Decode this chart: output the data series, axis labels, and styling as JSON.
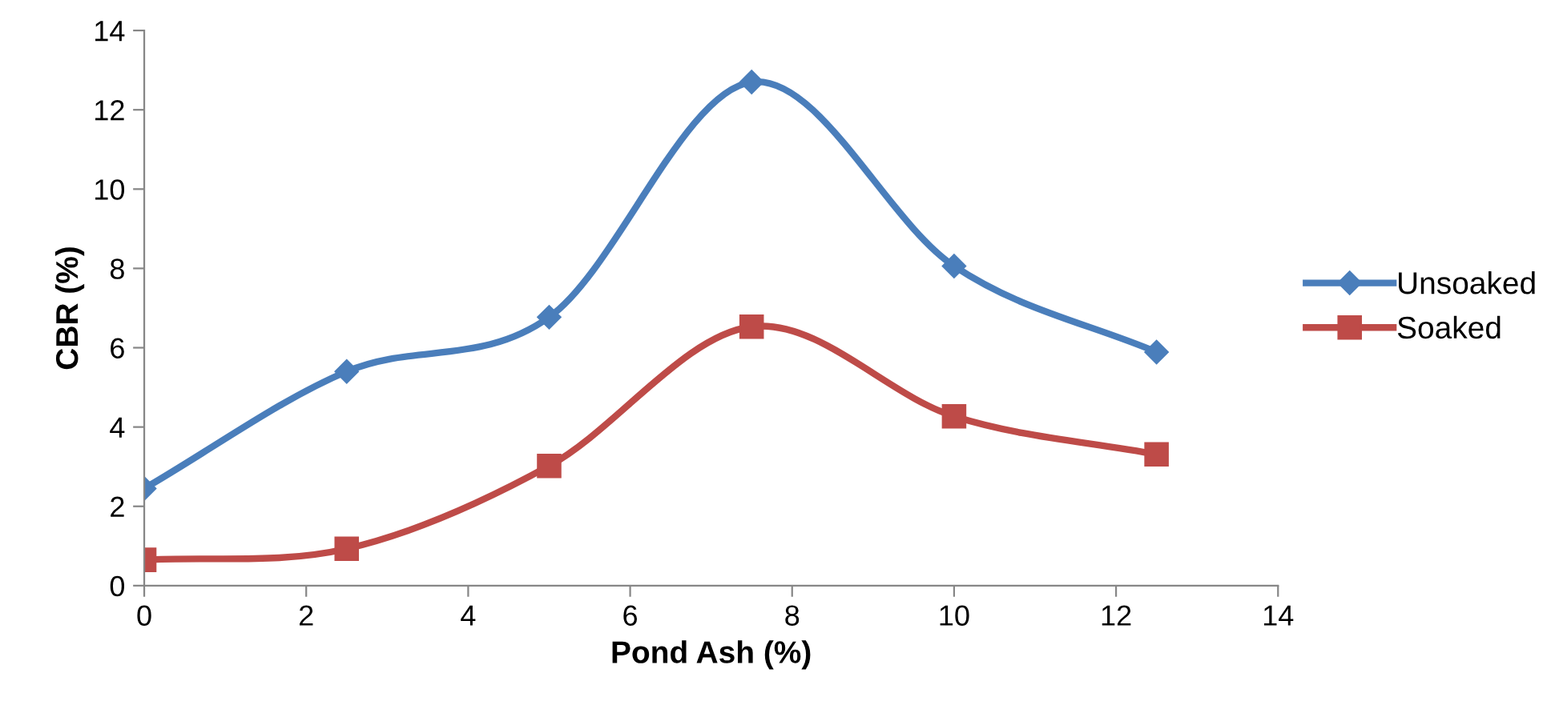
{
  "chart_data": {
    "type": "line",
    "xlabel": "Pond Ash (%)",
    "ylabel": "CBR (%)",
    "x": [
      0,
      2.5,
      5,
      7.5,
      10,
      12.5
    ],
    "series": [
      {
        "name": "Unsoaked",
        "color": "#4a7ebb",
        "marker": "diamond",
        "values": [
          2.45,
          5.4,
          6.77,
          12.7,
          8.06,
          5.89
        ]
      },
      {
        "name": "Soaked",
        "color": "#be4b48",
        "marker": "square",
        "values": [
          0.65,
          0.93,
          3.02,
          6.53,
          4.27,
          3.31
        ]
      }
    ],
    "xlim": [
      0,
      14
    ],
    "xticks": [
      0,
      2,
      4,
      6,
      8,
      10,
      12,
      14
    ],
    "ylim": [
      0,
      14
    ],
    "yticks": [
      0,
      2,
      4,
      6,
      8,
      10,
      12,
      14
    ],
    "grid": false,
    "legend": "right",
    "line_style": "solid"
  }
}
